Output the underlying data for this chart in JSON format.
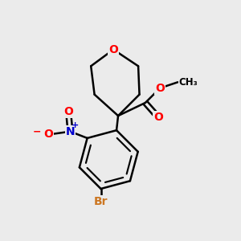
{
  "bg_color": "#ebebeb",
  "bond_color": "#000000",
  "bond_width": 1.8,
  "atom_colors": {
    "O": "#ff0000",
    "N": "#0000cd",
    "Br": "#cc7722",
    "C": "#000000"
  },
  "font_size_atom": 10,
  "font_size_small": 8.5
}
